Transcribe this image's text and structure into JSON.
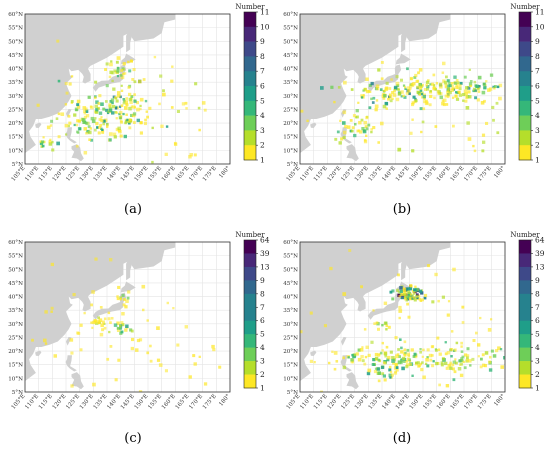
{
  "lat_labels": [
    "60°N",
    "55°N",
    "50°N",
    "45°N",
    "40°N",
    "35°N",
    "30°N",
    "25°N",
    "20°N",
    "15°N",
    "10°N",
    "5°N"
  ],
  "lon_labels": [
    "105°E",
    "110°E",
    "115°E",
    "120°E",
    "125°E",
    "130°E",
    "135°E",
    "140°E",
    "145°E",
    "150°E",
    "155°E",
    "160°E",
    "165°E",
    "170°E",
    "175°E",
    "180°"
  ],
  "colors": {
    "land": "#d0d0d0",
    "grid": "#e4e4e4",
    "frame": "#333333",
    "viridis": [
      "#fde725",
      "#b5de2b",
      "#6ece58",
      "#35b779",
      "#1f9e89",
      "#26828e",
      "#31688e",
      "#3e4989",
      "#482878",
      "#440154"
    ]
  },
  "panels": [
    {
      "id": "a",
      "caption": "(a)",
      "colorbar_title": "Number",
      "colorbar_ticks": [
        "11",
        "10",
        "9",
        "8",
        "7",
        "6",
        "5",
        "4",
        "3",
        "2",
        "1"
      ],
      "clusters": [
        {
          "lon": 132,
          "lat": 22,
          "sx": 9,
          "sy": 4.5,
          "n": 140,
          "max": 5
        },
        {
          "lon": 141,
          "lat": 29,
          "sx": 3.5,
          "sy": 3,
          "n": 40,
          "max": 6
        },
        {
          "lon": 141,
          "lat": 39,
          "sx": 3,
          "sy": 2.5,
          "n": 25,
          "max": 4
        },
        {
          "lon": 113,
          "lat": 13,
          "sx": 2,
          "sy": 1.5,
          "n": 12,
          "max": 4
        },
        {
          "lon": 150,
          "lat": 25,
          "sx": 18,
          "sy": 12,
          "n": 70,
          "max": 2
        }
      ]
    },
    {
      "id": "b",
      "caption": "(b)",
      "colorbar_title": "Number",
      "colorbar_ticks": [
        "11",
        "10",
        "9",
        "8",
        "7",
        "6",
        "5",
        "4",
        "3",
        "2",
        "1"
      ],
      "clusters": [
        {
          "lon": 155,
          "lat": 32,
          "sx": 14,
          "sy": 2.5,
          "n": 220,
          "max": 6
        },
        {
          "lon": 126,
          "lat": 19,
          "sx": 4,
          "sy": 3,
          "n": 40,
          "max": 4
        },
        {
          "lon": 136,
          "lat": 30,
          "sx": 3,
          "sy": 2,
          "n": 20,
          "max": 4
        },
        {
          "lon": 150,
          "lat": 26,
          "sx": 20,
          "sy": 10,
          "n": 60,
          "max": 2
        }
      ]
    },
    {
      "id": "c",
      "caption": "(c)",
      "colorbar_title": "Number",
      "colorbar_ticks": [
        "64",
        "39",
        "13",
        "9",
        "8",
        "7",
        "6",
        "5",
        "4",
        "3",
        "2",
        "1"
      ],
      "clusters": [
        {
          "lon": 134,
          "lat": 30,
          "sx": 2.5,
          "sy": 1.5,
          "n": 20,
          "max": 3
        },
        {
          "lon": 141,
          "lat": 29,
          "sx": 2,
          "sy": 1.5,
          "n": 15,
          "max": 5
        },
        {
          "lon": 141,
          "lat": 40,
          "sx": 1.5,
          "sy": 1.5,
          "n": 10,
          "max": 4
        },
        {
          "lon": 148,
          "lat": 28,
          "sx": 22,
          "sy": 13,
          "n": 80,
          "max": 1
        }
      ]
    },
    {
      "id": "d",
      "caption": "(d)",
      "colorbar_title": "Number",
      "colorbar_ticks": [
        "64",
        "39",
        "13",
        "9",
        "8",
        "7",
        "6",
        "5",
        "4",
        "3",
        "2",
        "1"
      ],
      "clusters": [
        {
          "lon": 145,
          "lat": 41,
          "sx": 2.5,
          "sy": 1.2,
          "n": 50,
          "max": 10
        },
        {
          "lon": 146,
          "lat": 40,
          "sx": 3,
          "sy": 2,
          "n": 30,
          "max": 5
        },
        {
          "lon": 152,
          "lat": 17,
          "sx": 18,
          "sy": 2.5,
          "n": 180,
          "max": 4
        },
        {
          "lon": 136,
          "lat": 14,
          "sx": 5,
          "sy": 2,
          "n": 40,
          "max": 5
        },
        {
          "lon": 135,
          "lat": 30,
          "sx": 1.5,
          "sy": 1,
          "n": 8,
          "max": 3
        },
        {
          "lon": 150,
          "lat": 28,
          "sx": 20,
          "sy": 12,
          "n": 60,
          "max": 1
        }
      ]
    }
  ]
}
